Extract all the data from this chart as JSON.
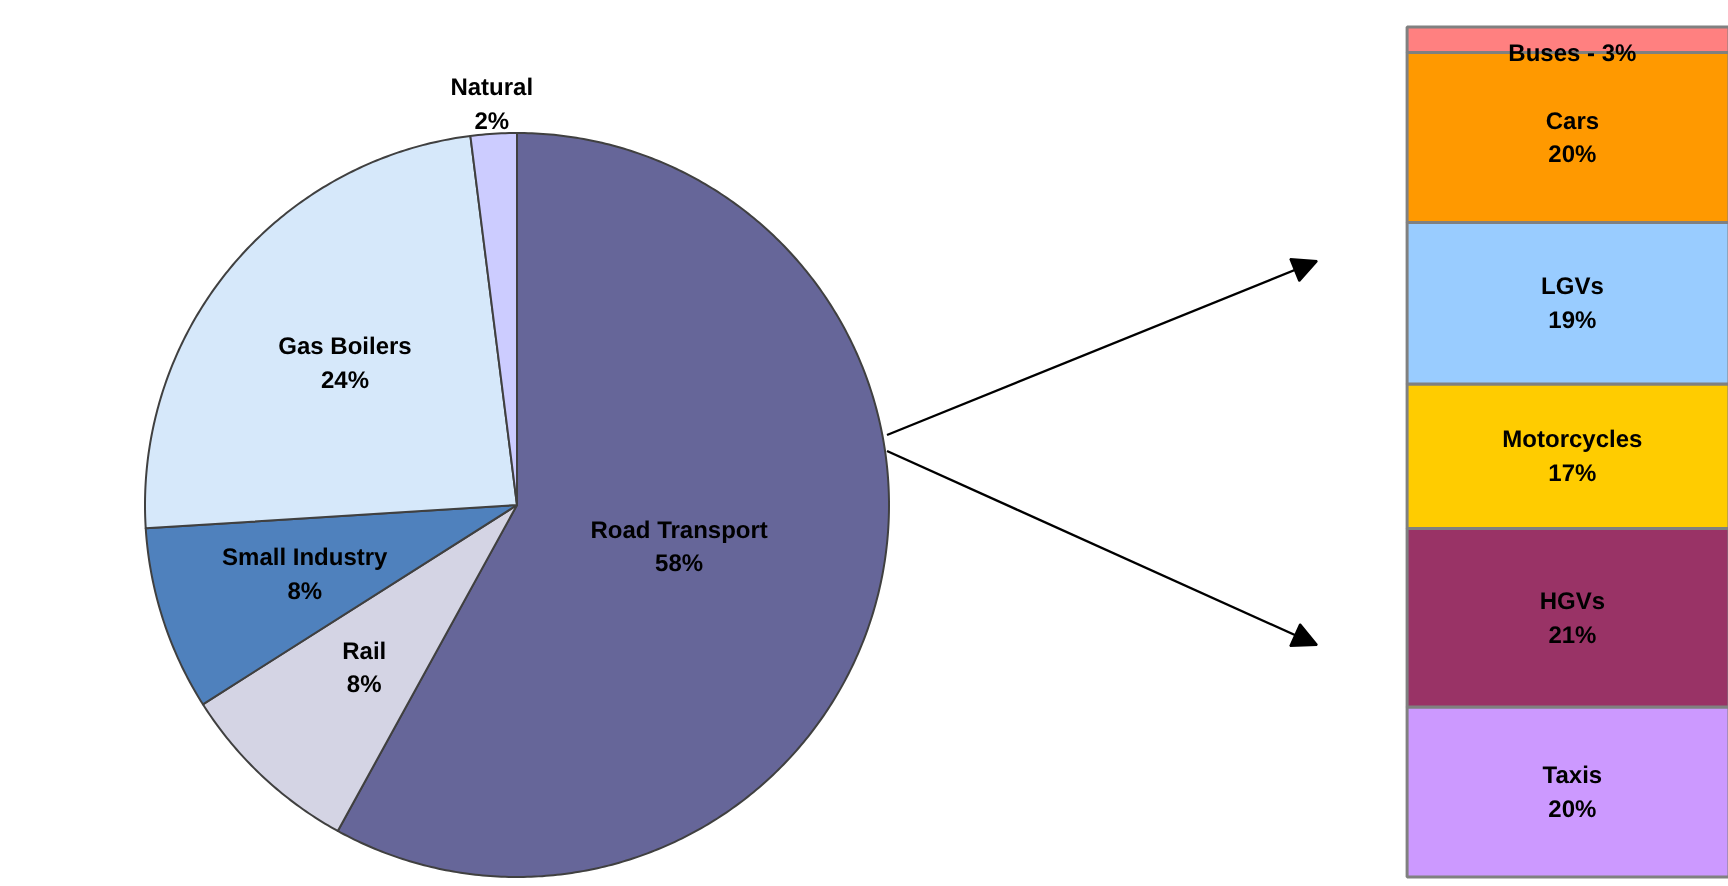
{
  "chart_data": [
    {
      "type": "pie",
      "categories": [
        "Road Transport",
        "Rail",
        "Small Industry",
        "Gas Boilers",
        "Natural"
      ],
      "values": [
        58,
        8,
        8,
        24,
        2
      ],
      "colors": [
        "#666699",
        "#d4d4e4",
        "#4f81bd",
        "#d6e8fa",
        "#ccccff"
      ],
      "value_labels": [
        "58%",
        "8%",
        "8%",
        "24%",
        "2%"
      ]
    },
    {
      "type": "bar",
      "stacked": true,
      "categories": [
        null
      ],
      "series": [
        {
          "name": "Taxis",
          "color": "#cc99ff",
          "values": [
            20
          ],
          "value_labels": [
            "20%"
          ]
        },
        {
          "name": "HGVs",
          "color": "#993366",
          "values": [
            21
          ],
          "value_labels": [
            "21%"
          ]
        },
        {
          "name": "Motorcycles",
          "color": "#ffcc00",
          "values": [
            17
          ],
          "value_labels": [
            "17%"
          ]
        },
        {
          "name": "LGVs",
          "color": "#99ccff",
          "values": [
            19
          ],
          "value_labels": [
            "19%"
          ]
        },
        {
          "name": "Cars",
          "color": "#ff9900",
          "values": [
            20
          ],
          "value_labels": [
            "20%"
          ]
        },
        {
          "name": "Buses -",
          "color": "#ff8080",
          "values": [
            3
          ],
          "value_labels": [
            "3%"
          ]
        }
      ]
    }
  ]
}
